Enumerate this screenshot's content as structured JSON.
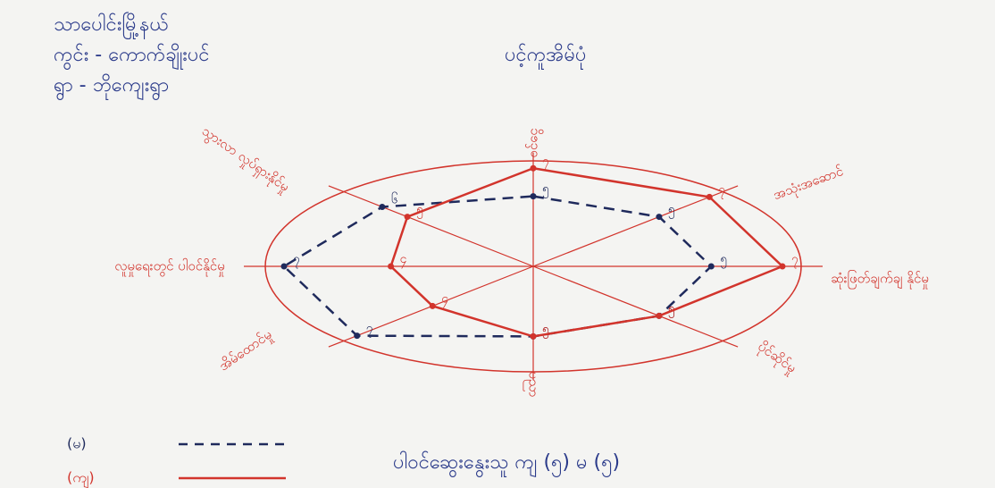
{
  "chart_data": {
    "type": "radar",
    "title": "ပင့်ကူအိမ်ပုံ",
    "annotations": [
      "သာပေါင်းမြို့နယ်",
      "ကွင်း - ကောက်ချိုးပင်",
      "ရွာ - ဘိုကျေးရွာ",
      "ပါဝင်ဆွေးနွေးသူ ကျ (၅) မ (၅)"
    ],
    "categories": [
      "ဝင်ငွေ",
      "အသုံးအဆောင်",
      "ဆုံးဖြတ်ချက်ချ နိုင်မှု",
      "ပိုင်ဆိုင်မှု",
      "ပညာ",
      "အိမ်ထောင်မှု",
      "လူမှုရေးတွင် ပါဝင်နိုင်မှု",
      "သွားလာ လှုပ်ရှားနိုင်မှု"
    ],
    "rlim": [
      0,
      7
    ],
    "series": [
      {
        "name": "(မ)",
        "color": "#1f2a5c",
        "dash": true,
        "values": [
          5,
          5,
          5,
          5,
          5,
          7,
          7,
          6
        ],
        "value_labels": [
          "၅",
          "၅",
          "၅",
          "၅",
          "၅",
          "၇",
          "၇",
          "၆"
        ]
      },
      {
        "name": "(ကျ)",
        "color": "#d2342c",
        "dash": false,
        "values": [
          7,
          7,
          7,
          5,
          5,
          4,
          4,
          5
        ],
        "value_labels": [
          "၇",
          "၇",
          "၇",
          "၅",
          "၅",
          "၄",
          "၄",
          "၅"
        ]
      }
    ]
  }
}
